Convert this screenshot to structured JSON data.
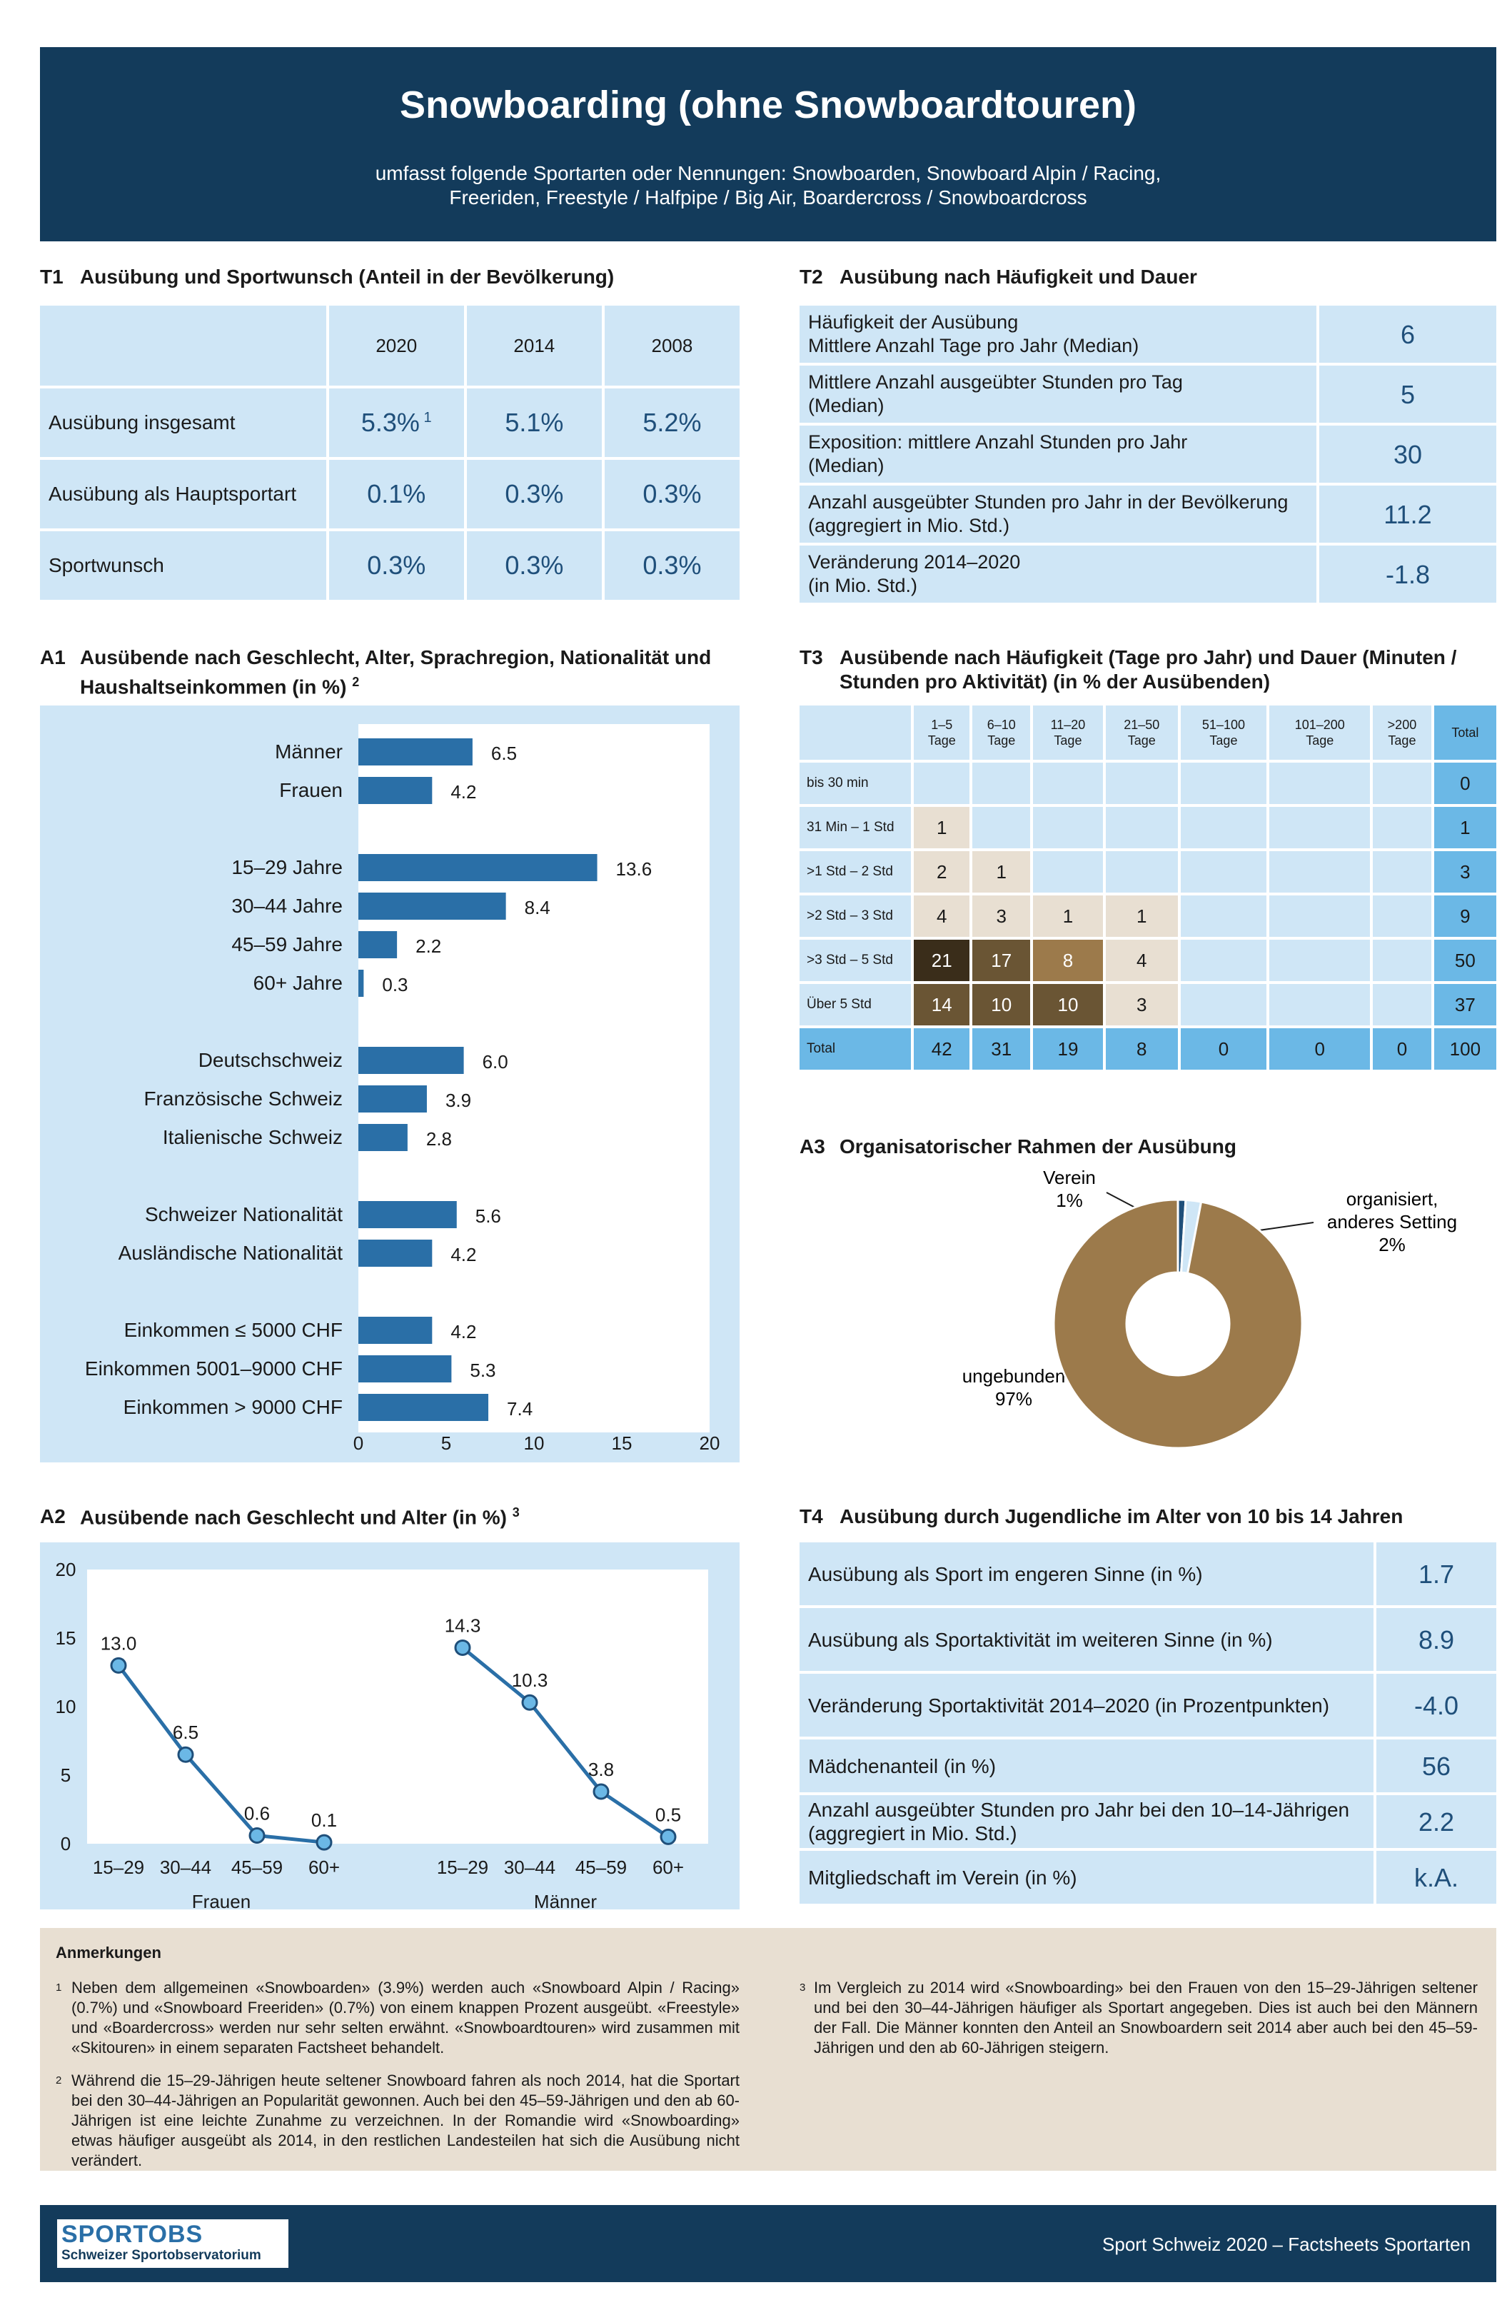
{
  "header": {
    "title": "Snowboarding (ohne Snowboardtouren)",
    "subtitle_line1": "umfasst folgende Sportarten oder Nennungen: Snowboarden, Snowboard Alpin / Racing,",
    "subtitle_line2": "Freeriden, Freestyle / Halfpipe / Big Air, Boardercross / Snowboardcross"
  },
  "t1": {
    "num": "T1",
    "title": "Ausübung und Sportwunsch (Anteil in der Bevölkerung)",
    "years": [
      "2020",
      "2014",
      "2008"
    ],
    "rows": [
      {
        "label": "Ausübung insgesamt",
        "v2020": "5.3%",
        "sup": "1",
        "v2014": "5.1%",
        "v2008": "5.2%"
      },
      {
        "label": "Ausübung als Hauptsportart",
        "v2020": "0.1%",
        "v2014": "0.3%",
        "v2008": "0.3%"
      },
      {
        "label": "Sportwunsch",
        "v2020": "0.3%",
        "v2014": "0.3%",
        "v2008": "0.3%"
      }
    ]
  },
  "t2": {
    "num": "T2",
    "title": "Ausübung nach Häufigkeit und Dauer",
    "rows": [
      {
        "l1": "Häufigkeit der Ausübung",
        "l2": "Mittlere Anzahl Tage pro Jahr (Median)",
        "value": "6"
      },
      {
        "l1": "Mittlere Anzahl ausgeübter Stunden pro Tag",
        "l2": "(Median)",
        "value": "5"
      },
      {
        "l1": "Exposition: mittlere Anzahl Stunden pro Jahr",
        "l2": "(Median)",
        "value": "30"
      },
      {
        "l1": "Anzahl ausgeübter Stunden pro Jahr in der Bevölkerung",
        "l2": "(aggregiert in Mio. Std.)",
        "value": "11.2"
      },
      {
        "l1": "Veränderung 2014–2020",
        "l2": "(in Mio. Std.)",
        "value": "-1.8"
      }
    ]
  },
  "a1": {
    "num": "A1",
    "title_l1": "Ausübende nach Geschlecht, Alter, Sprachregion, Nationalität und",
    "title_l2": "Haushaltseinkommen (in %)",
    "title_sup": "2"
  },
  "t3": {
    "num": "T3",
    "title_l1": "Ausübende nach Häufigkeit (Tage pro Jahr) und Dauer (Minuten /",
    "title_l2": "Stunden pro Aktivität) (in % der Ausübenden)",
    "cols": [
      {
        "l1": "1–5",
        "l2": "Tage"
      },
      {
        "l1": "6–10",
        "l2": "Tage"
      },
      {
        "l1": "11–20",
        "l2": "Tage"
      },
      {
        "l1": "21–50",
        "l2": "Tage"
      },
      {
        "l1": "51–100",
        "l2": "Tage"
      },
      {
        "l1": "101–200",
        "l2": "Tage"
      },
      {
        "l1": ">200",
        "l2": "Tage"
      },
      {
        "l1": "Total",
        "l2": ""
      }
    ],
    "rows": [
      {
        "label": "bis 30 min",
        "cells": [
          "",
          "",
          "",
          "",
          "",
          "",
          ""
        ],
        "total": "0"
      },
      {
        "label": "31 Min – 1 Std",
        "cells": [
          "1",
          "",
          "",
          "",
          "",
          "",
          ""
        ],
        "total": "1"
      },
      {
        "label": ">1 Std – 2 Std",
        "cells": [
          "2",
          "1",
          "",
          "",
          "",
          "",
          ""
        ],
        "total": "3"
      },
      {
        "label": ">2 Std – 3 Std",
        "cells": [
          "4",
          "3",
          "1",
          "1",
          "",
          "",
          ""
        ],
        "total": "9"
      },
      {
        "label": ">3 Std – 5 Std",
        "cells": [
          "21",
          "17",
          "8",
          "4",
          "",
          "",
          ""
        ],
        "total": "50"
      },
      {
        "label": "Über 5 Std",
        "cells": [
          "14",
          "10",
          "10",
          "3",
          "",
          "",
          ""
        ],
        "total": "37"
      }
    ],
    "total_row": {
      "label": "Total",
      "cells": [
        "42",
        "31",
        "19",
        "8",
        "0",
        "0",
        "0"
      ],
      "total": "100"
    }
  },
  "a3": {
    "num": "A3",
    "title": "Organisatorischer Rahmen der Ausübung",
    "labels": {
      "verein": "Verein",
      "verein_pct": "1%",
      "org_l1": "organisiert,",
      "org_l2": "anderes Setting",
      "org_pct": "2%",
      "ungeb": "ungebunden",
      "ungeb_pct": "97%"
    }
  },
  "a2": {
    "num": "A2",
    "title": "Ausübende nach Geschlecht und Alter (in %)",
    "title_sup": "3"
  },
  "t4": {
    "num": "T4",
    "title": "Ausübung durch Jugendliche im Alter von 10 bis 14 Jahren",
    "rows": [
      {
        "l1": "Ausübung als Sport im engeren Sinne (in %)",
        "l2": "",
        "value": "1.7"
      },
      {
        "l1": "Ausübung als Sportaktivität im weiteren Sinne (in %)",
        "l2": "",
        "value": "8.9"
      },
      {
        "l1": "Veränderung Sportaktivität 2014–2020 (in Prozentpunkten)",
        "l2": "",
        "value": "-4.0"
      },
      {
        "l1": "Mädchenanteil (in %)",
        "l2": "",
        "value": "56"
      },
      {
        "l1": "Anzahl ausgeübter Stunden pro Jahr bei den 10–14-Jährigen",
        "l2": "(aggregiert in Mio. Std.)",
        "value": "2.2"
      },
      {
        "l1": "Mitgliedschaft im Verein (in %)",
        "l2": "",
        "value": "k.A."
      }
    ]
  },
  "notes": {
    "title": "Anmerkungen",
    "n1_sup": "1",
    "n1": "Neben dem allgemeinen «Snowboarden» (3.9%) werden auch «Snowboard Alpin / Racing» (0.7%) und «Snowboard Freeriden» (0.7%) von einem knappen Prozent ausgeübt. «Freestyle» und «Boardercross» werden nur sehr selten erwähnt. «Snowboardtouren» wird zusammen mit «Skitouren» in einem separaten Factsheet behandelt.",
    "n2_sup": "2",
    "n2": "Während die 15–29-Jährigen heute seltener Snowboard fahren als noch 2014, hat die Sportart bei den 30–44-Jährigen an Popularität gewonnen. Auch bei den 45–59-Jährigen und den ab 60-Jährigen ist eine leichte Zunahme zu verzeichnen. In der Romandie wird «Snowboarding» etwas häufiger ausgeübt als 2014, in den restlichen Landesteilen hat sich die Ausübung nicht verändert.",
    "n3_sup": "3",
    "n3": "Im Vergleich zu 2014 wird «Snowboarding» bei den Frauen von den 15–29-Jährigen seltener und bei den 30–44-Jährigen häufiger als Sportart angegeben. Dies ist auch bei den Männern der Fall. Die Männer konnten den Anteil an Snowboardern seit 2014 aber auch bei den 45–59-Jährigen und den ab 60-Jährigen steigern."
  },
  "footer": {
    "logo_l1": "SPORTOBS",
    "logo_l2": "Schweizer Sportobservatorium",
    "text": "Sport Schweiz 2020 – Factsheets Sportarten"
  },
  "colors": {
    "navy": "#133b5b",
    "light_blue": "#cfe6f6",
    "bar_blue": "#2a6fa7",
    "beige": "#e8dfd2",
    "brown": "#9c7a4b",
    "total_blue": "#6bb8e6"
  },
  "chart_data": [
    {
      "id": "A1",
      "type": "bar",
      "orientation": "horizontal",
      "categories": [
        "Männer",
        "Frauen",
        "15–29 Jahre",
        "30–44 Jahre",
        "45–59 Jahre",
        "60+ Jahre",
        "Deutschschweiz",
        "Französische Schweiz",
        "Italienische Schweiz",
        "Schweizer Nationalität",
        "Ausländische Nationalität",
        "Einkommen ≤ 5000 CHF",
        "Einkommen 5001–9000 CHF",
        "Einkommen > 9000 CHF"
      ],
      "groups": [
        2,
        4,
        3,
        2,
        3
      ],
      "values": [
        6.5,
        4.2,
        13.6,
        8.4,
        2.2,
        0.3,
        6.0,
        3.9,
        2.8,
        5.6,
        4.2,
        4.2,
        5.3,
        7.4
      ],
      "value_labels": [
        "6.5",
        "4.2",
        "13.6",
        "8.4",
        "2.2",
        "0.3",
        "6.0",
        "3.9",
        "2.8",
        "5.6",
        "4.2",
        "4.2",
        "5.3",
        "7.4"
      ],
      "xlim": [
        0,
        20
      ],
      "xticks": [
        "0",
        "5",
        "10",
        "15",
        "20"
      ]
    },
    {
      "id": "A2",
      "type": "line",
      "x_ticks": [
        "15–29",
        "30–44",
        "45–59",
        "60+"
      ],
      "yticks": [
        "0",
        "5",
        "10",
        "15",
        "20"
      ],
      "ylim": [
        0,
        20
      ],
      "series": [
        {
          "name": "Frauen",
          "values": [
            13.0,
            6.5,
            0.6,
            0.1
          ],
          "labels": [
            "13.0",
            "6.5",
            "0.6",
            "0.1"
          ]
        },
        {
          "name": "Männer",
          "values": [
            14.3,
            10.3,
            3.8,
            0.5
          ],
          "labels": [
            "14.3",
            "10.3",
            "3.8",
            "0.5"
          ]
        }
      ]
    },
    {
      "id": "A3",
      "type": "pie",
      "categories": [
        "Verein",
        "organisiert, anderes Setting",
        "ungebunden"
      ],
      "values": [
        1,
        2,
        97
      ],
      "colors": [
        "#1f4f7a",
        "#cfe6f6",
        "#9c7a4b"
      ],
      "donut": true
    }
  ]
}
